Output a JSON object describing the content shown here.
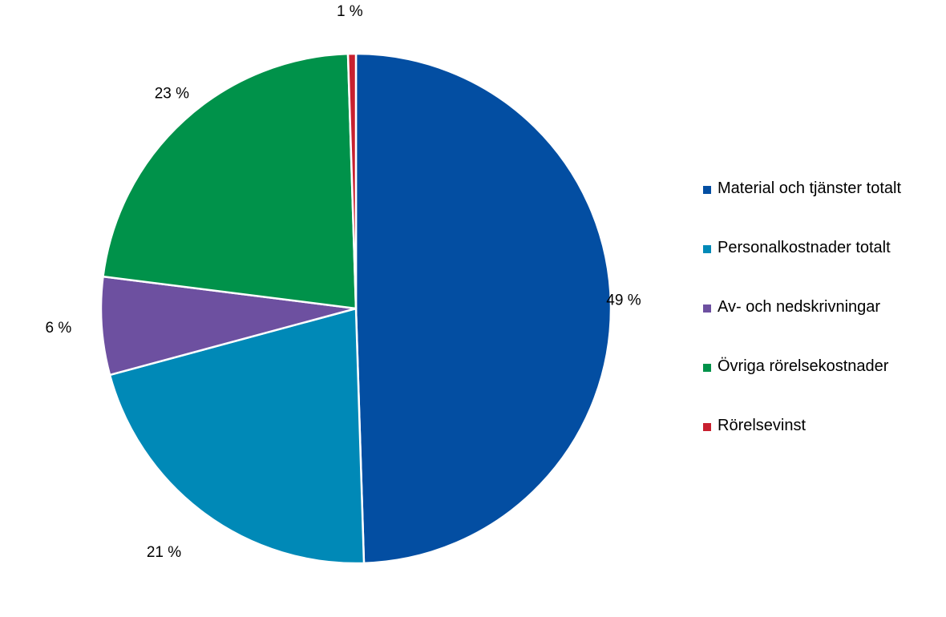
{
  "chart_data": {
    "type": "pie",
    "title": "",
    "categories": [
      "Material och tjänster totalt",
      "Personalkostnader totalt",
      "Av- och nedskrivningar",
      "Övriga rörelsekostnader",
      "Rörelsevinst"
    ],
    "values": [
      49.5,
      21.3,
      6.2,
      22.5,
      0.5
    ],
    "data_labels": [
      "49 %",
      "21 %",
      "6 %",
      "23 %",
      "1 %"
    ],
    "colors": [
      "#034ea2",
      "#0089b7",
      "#6d50a0",
      "#00924a",
      "#c8202f"
    ],
    "legend_position": "right",
    "start_angle": "12 o'clock, clockwise"
  }
}
